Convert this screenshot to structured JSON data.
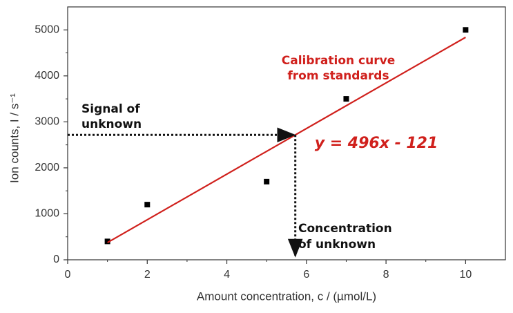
{
  "chart_data": {
    "type": "scatter",
    "xlabel": "Amount concentration, c / (µmol/L)",
    "ylabel": "Ion counts, I / s⁻¹",
    "xlim": [
      0,
      11
    ],
    "ylim": [
      0,
      5500
    ],
    "xticks": [
      0,
      2,
      4,
      6,
      8,
      10
    ],
    "yticks": [
      0,
      1000,
      2000,
      3000,
      4000,
      5000
    ],
    "series": [
      {
        "type": "scatter",
        "color": "#000000",
        "x": [
          1,
          2,
          5,
          7,
          10
        ],
        "values": [
          400,
          1200,
          1700,
          3500,
          5000
        ]
      },
      {
        "type": "line",
        "color": "#d0201c",
        "x": [
          1,
          10
        ],
        "values": [
          375,
          4839
        ]
      }
    ],
    "unknown": {
      "x": 5.72,
      "y": 2716
    },
    "annotations": [
      {
        "lines": [
          "Signal of",
          "unknown"
        ]
      },
      {
        "lines": [
          "Calibration curve",
          "from standards"
        ]
      },
      {
        "lines": [
          "y = 496x - 121"
        ]
      },
      {
        "lines": [
          "Concentration",
          "of unknown"
        ]
      }
    ]
  }
}
